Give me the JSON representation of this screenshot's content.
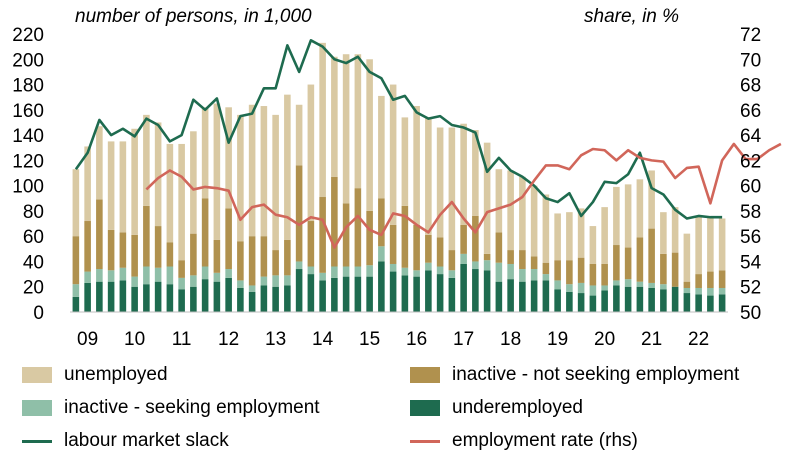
{
  "chart_data": {
    "type": "bar",
    "left_axis_label": "number of persons, in 1,000",
    "right_axis_label": "share, in %",
    "left_ylim": [
      0,
      220
    ],
    "left_ticks": [
      "0",
      "20",
      "40",
      "60",
      "80",
      "100",
      "120",
      "140",
      "160",
      "180",
      "200",
      "220"
    ],
    "right_ylim": [
      50,
      72
    ],
    "right_ticks": [
      "50",
      "52",
      "54",
      "56",
      "58",
      "60",
      "62",
      "64",
      "66",
      "68",
      "70",
      "72"
    ],
    "x_ticks": [
      "09",
      "10",
      "11",
      "12",
      "13",
      "14",
      "15",
      "16",
      "17",
      "18",
      "19",
      "20",
      "21",
      "22"
    ],
    "x_tick_index": [
      1,
      5,
      9,
      13,
      17,
      21,
      25,
      29,
      33,
      37,
      41,
      45,
      49,
      53
    ],
    "stack_order": [
      "underemployed",
      "inactive - seeking employment",
      "inactive - not seeking employment",
      "unemployed"
    ],
    "series": [
      {
        "name": "underemployed",
        "color": "#1e6b4f",
        "values": [
          12,
          23,
          24,
          24,
          25,
          20,
          22,
          24,
          22,
          18,
          20,
          26,
          24,
          27,
          19,
          16,
          21,
          20,
          21,
          34,
          30,
          25,
          27,
          28,
          28,
          28,
          40,
          32,
          29,
          28,
          33,
          30,
          27,
          38,
          34,
          33,
          24,
          26,
          24,
          25,
          25,
          18,
          16,
          15,
          13,
          17,
          21,
          20,
          20,
          19,
          18,
          20,
          15,
          14,
          13,
          14
        ]
      },
      {
        "name": "inactive - seeking employment",
        "color": "#8fbfa8",
        "values": [
          10,
          9,
          10,
          9,
          10,
          8,
          14,
          11,
          14,
          9,
          9,
          10,
          7,
          7,
          6,
          5,
          7,
          9,
          8,
          6,
          6,
          6,
          9,
          8,
          8,
          9,
          12,
          6,
          6,
          5,
          6,
          6,
          6,
          8,
          6,
          8,
          15,
          12,
          10,
          9,
          5,
          7,
          6,
          8,
          8,
          4,
          4,
          6,
          4,
          4,
          4,
          0,
          4,
          5,
          6,
          5
        ]
      },
      {
        "name": "inactive - not seeking employment",
        "color": "#b0914e",
        "values": [
          38,
          40,
          55,
          32,
          28,
          33,
          48,
          33,
          19,
          14,
          33,
          54,
          26,
          48,
          31,
          39,
          32,
          20,
          28,
          76,
          36,
          60,
          71,
          50,
          62,
          43,
          38,
          31,
          49,
          36,
          22,
          23,
          16,
          23,
          36,
          5,
          24,
          11,
          15,
          10,
          9,
          16,
          19,
          20,
          17,
          17,
          28,
          25,
          35,
          43,
          24,
          27,
          5,
          11,
          13,
          14
        ]
      },
      {
        "name": "unemployed",
        "color": "#d9c9a3",
        "values": [
          53,
          59,
          58,
          70,
          72,
          84,
          72,
          82,
          78,
          92,
          81,
          72,
          108,
          80,
          100,
          104,
          103,
          107,
          115,
          48,
          108,
          122,
          95,
          118,
          106,
          120,
          81,
          111,
          70,
          94,
          93,
          87,
          97,
          80,
          68,
          88,
          50,
          63,
          58,
          56,
          54,
          37,
          38,
          39,
          30,
          45,
          46,
          50,
          46,
          46,
          33,
          36,
          38,
          45,
          43,
          41
        ]
      },
      {
        "name": "labour market slack",
        "color": "#1e6b4f",
        "type": "line",
        "values": [
          113,
          126,
          152,
          140,
          145,
          139,
          153,
          148,
          135,
          140,
          168,
          160,
          169,
          134,
          155,
          157,
          177,
          177,
          211,
          190,
          215,
          210,
          200,
          197,
          202,
          190,
          185,
          168,
          171,
          158,
          153,
          155,
          148,
          146,
          142,
          111,
          122,
          112,
          107,
          100,
          90,
          87,
          94,
          76,
          87,
          103,
          102,
          109,
          126,
          98,
          93,
          81,
          74,
          76,
          75,
          75
        ]
      },
      {
        "name": "employment rate (rhs)",
        "color": "#d1665a",
        "type": "line",
        "axis": "right",
        "start_index": 6,
        "values": [
          59.7,
          60.6,
          61.2,
          60.7,
          59.7,
          59.9,
          59.8,
          59.6,
          57.3,
          58.3,
          58.5,
          57.7,
          57.5,
          56.9,
          57.5,
          57.3,
          55.1,
          56.7,
          57.6,
          56.5,
          56.1,
          57.8,
          57.6,
          56.9,
          56.3,
          57.7,
          58.7,
          57.4,
          56.3,
          57.9,
          58.2,
          58.5,
          59.1,
          60.4,
          61.6,
          61.6,
          61.3,
          62.4,
          62.9,
          62.8,
          62.0,
          62.8,
          62.2,
          62.0,
          61.9,
          60.6,
          61.4,
          61.5,
          58.6,
          62.0,
          63.3,
          62.1,
          62.1,
          62.8,
          63.3
        ]
      }
    ]
  },
  "legend": [
    {
      "label": "unemployed",
      "kind": "box",
      "color": "#d9c9a3"
    },
    {
      "label": "inactive - not seeking employment",
      "kind": "box",
      "color": "#b0914e"
    },
    {
      "label": "inactive - seeking employment",
      "kind": "box",
      "color": "#8fbfa8"
    },
    {
      "label": "underemployed",
      "kind": "box",
      "color": "#1e6b4f"
    },
    {
      "label": "labour market slack",
      "kind": "line",
      "color": "#1e6b4f"
    },
    {
      "label": "employment rate (rhs)",
      "kind": "line",
      "color": "#d1665a"
    }
  ]
}
